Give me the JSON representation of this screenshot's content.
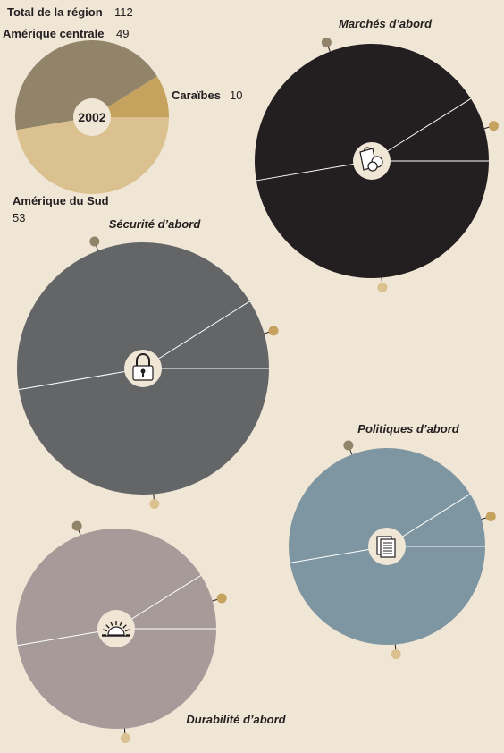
{
  "chart_data": [
    {
      "type": "pie",
      "name": "reference-donut",
      "center_label": "2002",
      "total": {
        "label": "Total de la région",
        "value": 112
      },
      "categories": [
        "Amérique centrale",
        "Caraïbes",
        "Amérique du Sud"
      ],
      "values": [
        49,
        10,
        53
      ],
      "value_labels": [
        "49",
        "10",
        "53"
      ],
      "colors": [
        "#918468",
        "#c5a35e",
        "#dbc18f"
      ]
    },
    {
      "type": "pie",
      "title": "Marchés d’abord",
      "icon": "shopping-bags-icon",
      "color": "#231f20",
      "categories": [
        "Amérique centrale",
        "Caraïbes",
        "Amérique du Sud"
      ],
      "values": [
        49,
        10,
        53
      ]
    },
    {
      "type": "pie",
      "title": "Sécurité d’abord",
      "icon": "padlock-icon",
      "color": "#636567",
      "categories": [
        "Amérique centrale",
        "Caraïbes",
        "Amérique du Sud"
      ],
      "values": [
        49,
        10,
        53
      ]
    },
    {
      "type": "pie",
      "title": "Politiques d’abord",
      "icon": "documents-icon",
      "color": "#7e96a2",
      "categories": [
        "Amérique centrale",
        "Caraïbes",
        "Amérique du Sud"
      ],
      "values": [
        49,
        10,
        53
      ]
    },
    {
      "type": "pie",
      "title": "Durabilité d’abord",
      "icon": "sunrise-icon",
      "color": "#a79b9a",
      "categories": [
        "Amérique centrale",
        "Caraïbes",
        "Amérique du Sud"
      ],
      "values": [
        49,
        10,
        53
      ]
    }
  ],
  "colors": {
    "background": "#f0e6d6",
    "divider": "#ffffff",
    "hub": "#f0e6d6",
    "marker_central": "#918468",
    "marker_caraibes": "#c5a35e",
    "marker_sud": "#dbc18f"
  }
}
